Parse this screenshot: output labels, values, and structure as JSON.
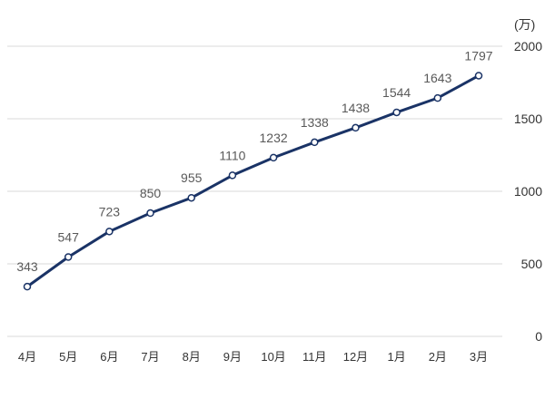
{
  "chart_data": {
    "type": "line",
    "title": "",
    "xlabel": "",
    "ylabel": "",
    "unit_label": "(万)",
    "categories": [
      "4月",
      "5月",
      "6月",
      "7月",
      "8月",
      "9月",
      "10月",
      "11月",
      "12月",
      "1月",
      "2月",
      "3月"
    ],
    "series": [
      {
        "name": "",
        "values": [
          343,
          547,
          723,
          850,
          955,
          1110,
          1232,
          1338,
          1438,
          1544,
          1643,
          1797
        ]
      }
    ],
    "ylim": [
      0,
      2000
    ],
    "yticks": [
      0,
      500,
      1000,
      1500,
      2000
    ],
    "y_axis_position": "right",
    "grid": true,
    "legend": "none",
    "data_labels": true,
    "colors": {
      "line": "#1a3366",
      "marker_fill": "#ffffff",
      "grid": "#d9d9d9",
      "label": "#595959"
    }
  }
}
